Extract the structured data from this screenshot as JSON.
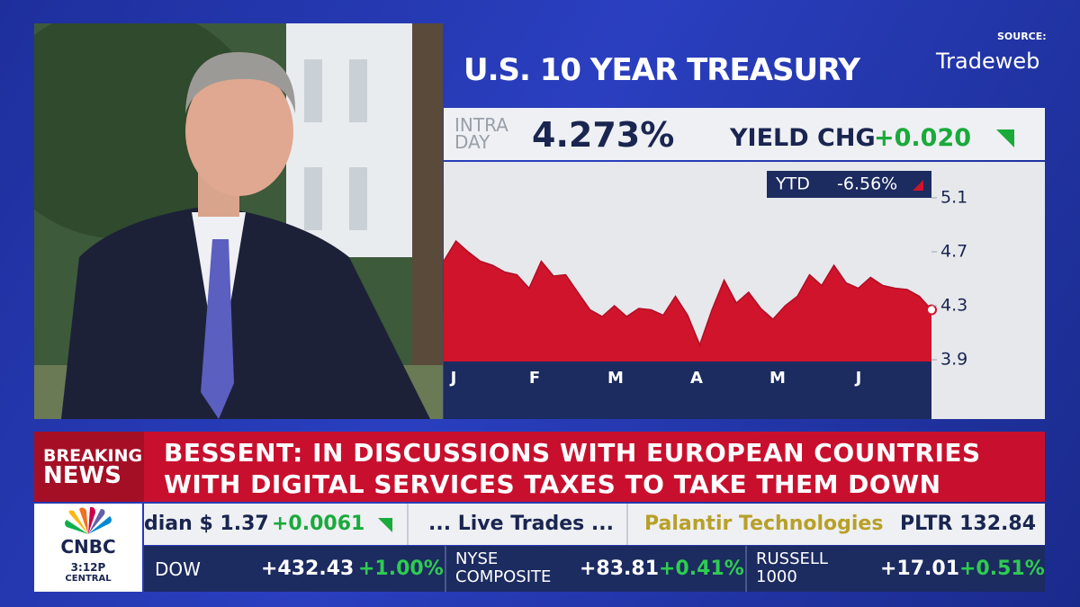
{
  "header": {
    "title": "U.S. 10 YEAR TREASURY",
    "source_label": "SOURCE:",
    "source": "Tradeweb"
  },
  "quote": {
    "label_lines": [
      "INTRA",
      "DAY"
    ],
    "value": "4.273%",
    "change_label": "YIELD CHG",
    "change": "+0.020"
  },
  "chart_data": {
    "type": "area",
    "ytd_label": "YTD",
    "ytd_value": "-6.56%",
    "color": "#d0142c",
    "months": [
      "J",
      "F",
      "M",
      "A",
      "M",
      "J"
    ],
    "values": [
      4.63,
      4.78,
      4.7,
      4.63,
      4.6,
      4.55,
      4.53,
      4.43,
      4.63,
      4.52,
      4.53,
      4.4,
      4.27,
      4.22,
      4.3,
      4.22,
      4.28,
      4.27,
      4.23,
      4.37,
      4.23,
      4.01,
      4.27,
      4.49,
      4.32,
      4.4,
      4.28,
      4.2,
      4.3,
      4.37,
      4.53,
      4.45,
      4.6,
      4.47,
      4.43,
      4.51,
      4.45,
      4.43,
      4.42,
      4.37,
      4.27
    ],
    "ylim": [
      3.5,
      5.3
    ],
    "yticks": [
      5.1,
      4.7,
      4.3,
      3.9
    ]
  },
  "breaking": {
    "label_lines": [
      "BREAKING",
      "NEWS"
    ],
    "headline_lines": [
      "BESSENT: IN DISCUSSIONS WITH EUROPEAN COUNTRIES",
      "WITH DIGITAL SERVICES TAXES TO TAKE THEM DOWN"
    ]
  },
  "ticker": {
    "item": "dian $ 1.37",
    "item_change": "+0.0061",
    "live": "... Live Trades ...",
    "company": "Palantir Technologies",
    "symbol_price": "PLTR 132.84"
  },
  "logo": {
    "brand": "CNBC",
    "time": "3:12P",
    "zone": "CENTRAL"
  },
  "indices": [
    {
      "name_lines": [
        "DOW"
      ],
      "change": "+432.43",
      "percent": "+1.00%"
    },
    {
      "name_lines": [
        "NYSE",
        "COMPOSITE"
      ],
      "change": "+83.81",
      "percent": "+0.41%"
    },
    {
      "name_lines": [
        "RUSSELL",
        "1000"
      ],
      "change": "+17.01",
      "percent": "+0.51%"
    }
  ]
}
